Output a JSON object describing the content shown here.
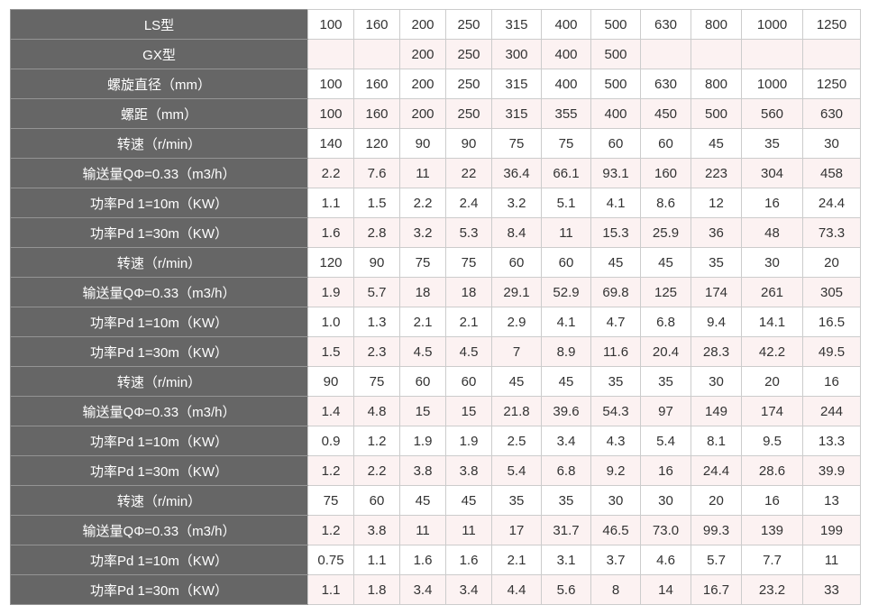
{
  "styles": {
    "page_bg": "#ffffff",
    "header_bg": "#666666",
    "header_border": "#949494",
    "header_text": "#ffffff",
    "row_bg": "#ffffff",
    "row_alt_bg": "#fcf2f2",
    "cell_border": "#cccccc",
    "cell_text": "#333333"
  },
  "chart_data": {
    "type": "table",
    "title": "",
    "legend": [],
    "grid": "on",
    "columns_count": 11,
    "rows": [
      {
        "label": "LS型",
        "values": [
          "100",
          "160",
          "200",
          "250",
          "315",
          "400",
          "500",
          "630",
          "800",
          "1000",
          "1250"
        ]
      },
      {
        "label": "GX型",
        "values": [
          "",
          "",
          "200",
          "250",
          "300",
          "400",
          "500",
          "",
          "",
          "",
          ""
        ]
      },
      {
        "label": "螺旋直径（mm）",
        "values": [
          "100",
          "160",
          "200",
          "250",
          "315",
          "400",
          "500",
          "630",
          "800",
          "1000",
          "1250"
        ]
      },
      {
        "label": "螺距（mm）",
        "values": [
          "100",
          "160",
          "200",
          "250",
          "315",
          "355",
          "400",
          "450",
          "500",
          "560",
          "630"
        ]
      },
      {
        "label": "转速（r/min）",
        "values": [
          "140",
          "120",
          "90",
          "90",
          "75",
          "75",
          "60",
          "60",
          "45",
          "35",
          "30"
        ]
      },
      {
        "label": "输送量QΦ=0.33（m3/h）",
        "values": [
          "2.2",
          "7.6",
          "11",
          "22",
          "36.4",
          "66.1",
          "93.1",
          "160",
          "223",
          "304",
          "458"
        ]
      },
      {
        "label": "功率Pd 1=10m（KW）",
        "values": [
          "1.1",
          "1.5",
          "2.2",
          "2.4",
          "3.2",
          "5.1",
          "4.1",
          "8.6",
          "12",
          "16",
          "24.4"
        ]
      },
      {
        "label": "功率Pd 1=30m（KW）",
        "values": [
          "1.6",
          "2.8",
          "3.2",
          "5.3",
          "8.4",
          "11",
          "15.3",
          "25.9",
          "36",
          "48",
          "73.3"
        ]
      },
      {
        "label": "转速（r/min）",
        "values": [
          "120",
          "90",
          "75",
          "75",
          "60",
          "60",
          "45",
          "45",
          "35",
          "30",
          "20"
        ]
      },
      {
        "label": "输送量QΦ=0.33（m3/h）",
        "values": [
          "1.9",
          "5.7",
          "18",
          "18",
          "29.1",
          "52.9",
          "69.8",
          "125",
          "174",
          "261",
          "305"
        ]
      },
      {
        "label": "功率Pd 1=10m（KW）",
        "values": [
          "1.0",
          "1.3",
          "2.1",
          "2.1",
          "2.9",
          "4.1",
          "4.7",
          "6.8",
          "9.4",
          "14.1",
          "16.5"
        ]
      },
      {
        "label": "功率Pd 1=30m（KW）",
        "values": [
          "1.5",
          "2.3",
          "4.5",
          "4.5",
          "7",
          "8.9",
          "11.6",
          "20.4",
          "28.3",
          "42.2",
          "49.5"
        ]
      },
      {
        "label": "转速（r/min）",
        "values": [
          "90",
          "75",
          "60",
          "60",
          "45",
          "45",
          "35",
          "35",
          "30",
          "20",
          "16"
        ]
      },
      {
        "label": "输送量QΦ=0.33（m3/h）",
        "values": [
          "1.4",
          "4.8",
          "15",
          "15",
          "21.8",
          "39.6",
          "54.3",
          "97",
          "149",
          "174",
          "244"
        ]
      },
      {
        "label": "功率Pd 1=10m（KW）",
        "values": [
          "0.9",
          "1.2",
          "1.9",
          "1.9",
          "2.5",
          "3.4",
          "4.3",
          "5.4",
          "8.1",
          "9.5",
          "13.3"
        ]
      },
      {
        "label": "功率Pd 1=30m（KW）",
        "values": [
          "1.2",
          "2.2",
          "3.8",
          "3.8",
          "5.4",
          "6.8",
          "9.2",
          "16",
          "24.4",
          "28.6",
          "39.9"
        ]
      },
      {
        "label": "转速（r/min）",
        "values": [
          "75",
          "60",
          "45",
          "45",
          "35",
          "35",
          "30",
          "30",
          "20",
          "16",
          "13"
        ]
      },
      {
        "label": "输送量QΦ=0.33（m3/h）",
        "values": [
          "1.2",
          "3.8",
          "11",
          "11",
          "17",
          "31.7",
          "46.5",
          "73.0",
          "99.3",
          "139",
          "199"
        ]
      },
      {
        "label": "功率Pd 1=10m（KW）",
        "values": [
          "0.75",
          "1.1",
          "1.6",
          "1.6",
          "2.1",
          "3.1",
          "3.7",
          "4.6",
          "5.7",
          "7.7",
          "11"
        ]
      },
      {
        "label": "功率Pd 1=30m（KW）",
        "values": [
          "1.1",
          "1.8",
          "3.4",
          "3.4",
          "4.4",
          "5.6",
          "8",
          "14",
          "16.7",
          "23.2",
          "33"
        ]
      }
    ]
  }
}
